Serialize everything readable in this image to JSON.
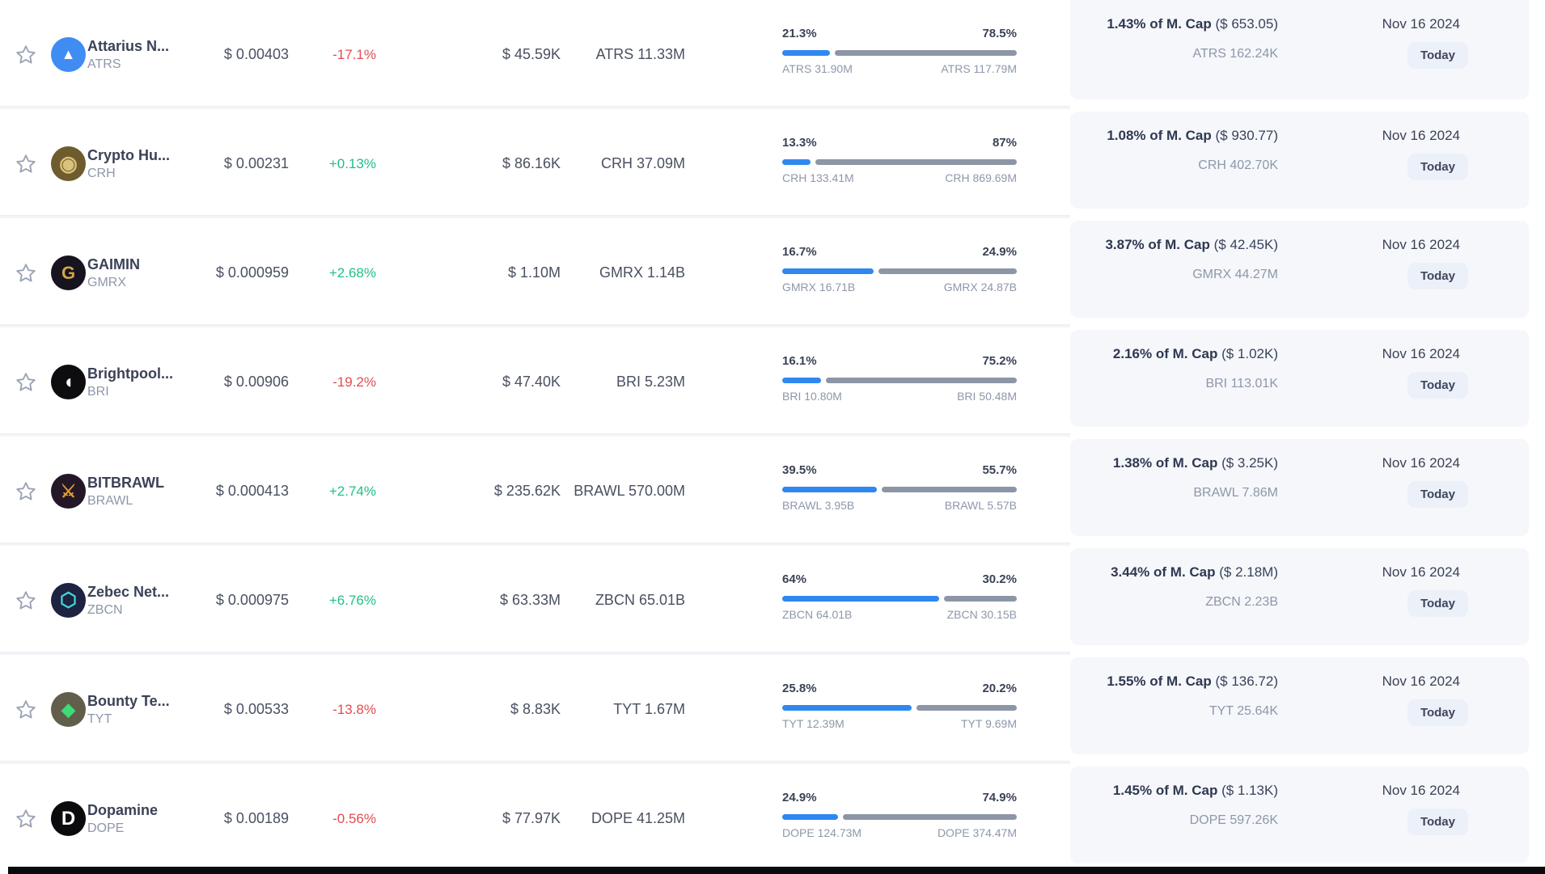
{
  "table": {
    "rows": [
      {
        "name": "Attarius N...",
        "symbol": "ATRS",
        "icon": {
          "name": "attarius-logo",
          "bg": "#3f8cf3",
          "glyph": "▲",
          "color": "#ffffff",
          "size": "18px"
        },
        "price": "$ 0.00403",
        "change": "-17.1%",
        "volume": "$ 45.59K",
        "supply": "ATRS 11.33M",
        "bar": {
          "left_pct": "21.3%",
          "right_pct": "78.5%",
          "left_amount": "ATRS 31.90M",
          "right_amount": "ATRS 117.79M"
        },
        "mcap": {
          "bold": "1.43% of M. Cap",
          "paren": "($ 653.05)",
          "sub": "ATRS 162.24K"
        },
        "date": "Nov 16 2024",
        "date_badge": "Today"
      },
      {
        "name": "Crypto Hu...",
        "symbol": "CRH",
        "icon": {
          "name": "crypto-hub-logo",
          "bg": "#6e5c2e",
          "glyph": "◉",
          "color": "#d9c27a",
          "size": "26px"
        },
        "price": "$ 0.00231",
        "change": "+0.13%",
        "volume": "$ 86.16K",
        "supply": "CRH 37.09M",
        "bar": {
          "left_pct": "13.3%",
          "right_pct": "87%",
          "left_amount": "CRH 133.41M",
          "right_amount": "CRH 869.69M"
        },
        "mcap": {
          "bold": "1.08% of M. Cap",
          "paren": "($ 930.77)",
          "sub": "CRH 402.70K"
        },
        "date": "Nov 16 2024",
        "date_badge": "Today"
      },
      {
        "name": "GAIMIN",
        "symbol": "GMRX",
        "icon": {
          "name": "gaimin-logo",
          "bg": "#17131f",
          "glyph": "G",
          "color": "#d2a648",
          "size": "22px"
        },
        "price": "$ 0.000959",
        "change": "+2.68%",
        "volume": "$ 1.10M",
        "supply": "GMRX 1.14B",
        "bar": {
          "left_pct": "16.7%",
          "right_pct": "24.9%",
          "left_amount": "GMRX 16.71B",
          "right_amount": "GMRX 24.87B"
        },
        "mcap": {
          "bold": "3.87% of M. Cap",
          "paren": "($ 42.45K)",
          "sub": "GMRX 44.27M"
        },
        "date": "Nov 16 2024",
        "date_badge": "Today"
      },
      {
        "name": "Brightpool...",
        "symbol": "BRI",
        "icon": {
          "name": "brightpool-logo",
          "bg": "#0d0d10",
          "glyph": "◖",
          "color": "#ffffff",
          "size": "24px"
        },
        "price": "$ 0.00906",
        "change": "-19.2%",
        "volume": "$ 47.40K",
        "supply": "BRI 5.23M",
        "bar": {
          "left_pct": "16.1%",
          "right_pct": "75.2%",
          "left_amount": "BRI 10.80M",
          "right_amount": "BRI 50.48M"
        },
        "mcap": {
          "bold": "2.16% of M. Cap",
          "paren": "($ 1.02K)",
          "sub": "BRI 113.01K"
        },
        "date": "Nov 16 2024",
        "date_badge": "Today"
      },
      {
        "name": "BITBRAWL",
        "symbol": "BRAWL",
        "icon": {
          "name": "bitbrawl-logo",
          "bg": "#241728",
          "glyph": "⚔",
          "color": "#e09a35",
          "size": "22px"
        },
        "price": "$ 0.000413",
        "change": "+2.74%",
        "volume": "$ 235.62K",
        "supply": "BRAWL 570.00M",
        "bar": {
          "left_pct": "39.5%",
          "right_pct": "55.7%",
          "left_amount": "BRAWL 3.95B",
          "right_amount": "BRAWL 5.57B"
        },
        "mcap": {
          "bold": "1.38% of M. Cap",
          "paren": "($ 3.25K)",
          "sub": "BRAWL 7.86M"
        },
        "date": "Nov 16 2024",
        "date_badge": "Today"
      },
      {
        "name": "Zebec Net...",
        "symbol": "ZBCN",
        "icon": {
          "name": "zebec-logo",
          "bg": "#1d2340",
          "glyph": "⬡",
          "color": "#43d8d8",
          "size": "24px"
        },
        "price": "$ 0.000975",
        "change": "+6.76%",
        "volume": "$ 63.33M",
        "supply": "ZBCN 65.01B",
        "bar": {
          "left_pct": "64%",
          "right_pct": "30.2%",
          "left_amount": "ZBCN 64.01B",
          "right_amount": "ZBCN 30.15B"
        },
        "mcap": {
          "bold": "3.44% of M. Cap",
          "paren": "($ 2.18M)",
          "sub": "ZBCN 2.23B"
        },
        "date": "Nov 16 2024",
        "date_badge": "Today"
      },
      {
        "name": "Bounty Te...",
        "symbol": "TYT",
        "icon": {
          "name": "bounty-logo",
          "bg": "#615f4c",
          "glyph": "◆",
          "color": "#3ddc75",
          "size": "22px"
        },
        "price": "$ 0.00533",
        "change": "-13.8%",
        "volume": "$ 8.83K",
        "supply": "TYT 1.67M",
        "bar": {
          "left_pct": "25.8%",
          "right_pct": "20.2%",
          "left_amount": "TYT 12.39M",
          "right_amount": "TYT 9.69M"
        },
        "mcap": {
          "bold": "1.55% of M. Cap",
          "paren": "($ 136.72)",
          "sub": "TYT 25.64K"
        },
        "date": "Nov 16 2024",
        "date_badge": "Today"
      },
      {
        "name": "Dopamine",
        "symbol": "DOPE",
        "icon": {
          "name": "dopamine-logo",
          "bg": "#0b0b0d",
          "glyph": "D",
          "color": "#ffffff",
          "size": "24px"
        },
        "price": "$ 0.00189",
        "change": "-0.56%",
        "volume": "$ 77.97K",
        "supply": "DOPE 41.25M",
        "bar": {
          "left_pct": "24.9%",
          "right_pct": "74.9%",
          "left_amount": "DOPE 124.73M",
          "right_amount": "DOPE 374.47M"
        },
        "mcap": {
          "bold": "1.45% of M. Cap",
          "paren": "($ 1.13K)",
          "sub": "DOPE 597.26K"
        },
        "date": "Nov 16 2024",
        "date_badge": "Today"
      }
    ]
  },
  "colors": {
    "accent_blue": "#2f88f0",
    "bar_gray": "#8d96a6",
    "up_green": "#23c084",
    "down_red": "#e44b52",
    "panel_bg": "#f5f7fb",
    "badge_bg": "#ecf0f8"
  }
}
